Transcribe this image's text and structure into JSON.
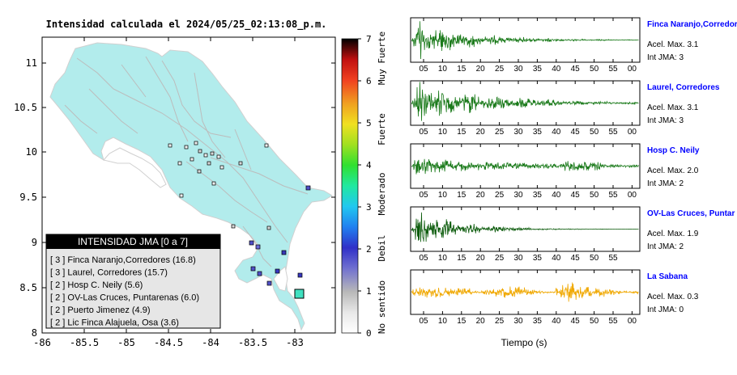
{
  "map": {
    "title": "Intensidad calculada el 2024/05/25_02:13:08_p.m.",
    "y_ticks": [
      "11",
      "10.5",
      "10",
      "9.5",
      "9",
      "8.5",
      "8"
    ],
    "x_ticks": [
      "-86",
      "-85.5",
      "-85",
      "-84.5",
      "-84",
      "-83.5",
      "-83"
    ],
    "land_color": "#b2ecec",
    "highlight_color": "#40e0c0"
  },
  "colorbar": {
    "ticks": [
      "7",
      "6",
      "5",
      "4",
      "3",
      "2",
      "1",
      "0"
    ],
    "labels": [
      "Muy Fuerte",
      "Fuerte",
      "Moderado",
      "Debil",
      "No sentido"
    ]
  },
  "legend": {
    "title": "INTENSIDAD JMA [0 a 7]",
    "entries": [
      "[ 3 ]  Finca Naranjo,Corredores (16.8)",
      "[ 3 ]  Laurel, Corredores (15.7)",
      "[ 2 ]  Hosp C. Neily (5.6)",
      "[ 2 ]  OV-Las Cruces, Puntarenas (6.0)",
      "[ 2 ]  Puerto Jimenez (4.9)",
      "[ 2 ]  Lic Finca Alajuela, Osa (3.6)"
    ]
  },
  "stations": [
    {
      "name": "Finca Naranjo,Corredor",
      "accel": "Acel. Max. 3.1",
      "int": "Int JMA: 3",
      "color": "#1a7a1a",
      "amp": 1.0,
      "decay": 0.07
    },
    {
      "name": "Laurel, Corredores",
      "accel": "Acel. Max. 3.1",
      "int": "Int JMA: 3",
      "color": "#1a7a1a",
      "amp": 1.0,
      "decay": 0.05
    },
    {
      "name": "Hosp C. Neily",
      "accel": "Acel. Max. 2.0",
      "int": "Int JMA: 2",
      "color": "#1a7a1a",
      "amp": 0.75,
      "decay": 0.035
    },
    {
      "name": "OV-Las Cruces, Puntar",
      "accel": "Acel. Max. 1.9",
      "int": "Int JMA: 2",
      "color": "#0a5a0a",
      "amp": 1.0,
      "decay": 0.09
    },
    {
      "name": "La Sabana",
      "accel": "Acel. Max. 0.3",
      "int": "Int JMA: 0",
      "color": "#f0a800",
      "amp": 0.55,
      "decay": 0.0
    }
  ],
  "seis_ticks": [
    "05",
    "10",
    "15",
    "20",
    "25",
    "30",
    "35",
    "40",
    "45",
    "50",
    "55",
    "00"
  ],
  "seis_ticks_short": [
    "05",
    "10",
    "15",
    "20",
    "25",
    "30",
    "35",
    "40",
    "45",
    "50",
    "55"
  ],
  "xlabel": "Tiempo (s)",
  "name_color": "#0000ff"
}
